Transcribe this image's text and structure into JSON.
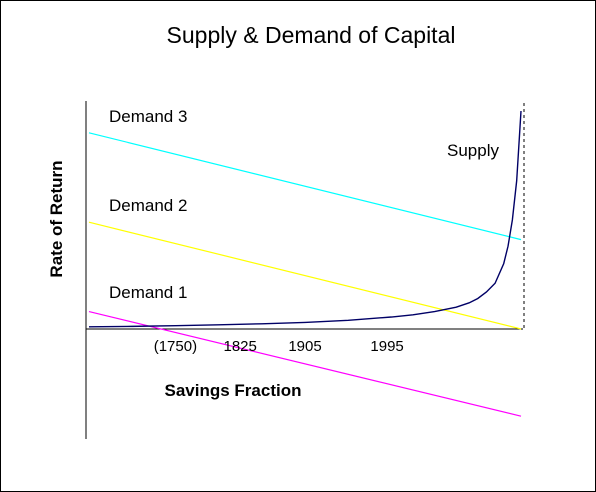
{
  "chart_data": {
    "type": "line",
    "title": "Supply & Demand of Capital",
    "xlabel": "Savings Fraction",
    "ylabel": "Rate of Return",
    "xlim": [
      0,
      1
    ],
    "ylim": [
      -0.4,
      1.0
    ],
    "grid": false,
    "legend": "none",
    "x_ticks": [
      {
        "label": "(1750)",
        "x": 0.2
      },
      {
        "label": "1825",
        "x": 0.35
      },
      {
        "label": "1905",
        "x": 0.5
      },
      {
        "label": "1995",
        "x": 0.69
      }
    ],
    "series": [
      {
        "name": "Demand 1",
        "color": "#ff00ff",
        "x": [
          0,
          1
        ],
        "y": [
          0.08,
          -0.4
        ]
      },
      {
        "name": "Demand 2",
        "color": "#ffff00",
        "x": [
          0,
          1
        ],
        "y": [
          0.49,
          0.0
        ]
      },
      {
        "name": "Demand 3",
        "color": "#00ffff",
        "x": [
          0,
          1
        ],
        "y": [
          0.9,
          0.41
        ]
      },
      {
        "name": "Supply",
        "color": "#000066",
        "x": [
          0,
          0.1,
          0.2,
          0.3,
          0.4,
          0.5,
          0.6,
          0.7,
          0.75,
          0.8,
          0.85,
          0.88,
          0.9,
          0.92,
          0.94,
          0.96,
          0.97,
          0.98,
          0.99,
          1.0
        ],
        "y": [
          0.01,
          0.012,
          0.015,
          0.019,
          0.024,
          0.03,
          0.04,
          0.055,
          0.065,
          0.08,
          0.1,
          0.12,
          0.14,
          0.17,
          0.21,
          0.3,
          0.38,
          0.5,
          0.68,
          1.0
        ]
      }
    ],
    "asymptote": {
      "x": 1.0,
      "color": "#000000",
      "style": "dashed"
    }
  }
}
